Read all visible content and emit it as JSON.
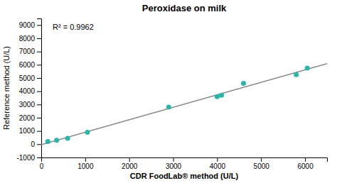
{
  "chart_data": {
    "type": "scatter",
    "title": "Peroxidase on milk",
    "x_label": "CDR FoodLab® method (U/L)",
    "y_label": "Reference method (U/L)",
    "annotations": [
      "R² = 0.9962"
    ],
    "series": [
      {
        "type": "scatter",
        "color": "#2ab5a8",
        "x": [
          150,
          350,
          600,
          1050,
          2900,
          4000,
          4100,
          4600,
          5800,
          6050
        ],
        "values": [
          200,
          300,
          450,
          900,
          2800,
          3600,
          3700,
          4600,
          5250,
          5750
        ]
      },
      {
        "type": "line",
        "color": "#888888",
        "x": [
          0,
          6500
        ],
        "values": [
          -31.9936,
          6088.0937
        ]
      }
    ],
    "xlim": [
      0,
      6500
    ],
    "ylim": [
      -1000,
      9500
    ],
    "xticks": [
      0,
      1000,
      2000,
      3000,
      4000,
      5000,
      6000
    ],
    "yticks": [
      -1000,
      0,
      1000,
      2000,
      3000,
      4000,
      5000,
      6000,
      7000,
      8000,
      9000
    ],
    "grid": false
  }
}
